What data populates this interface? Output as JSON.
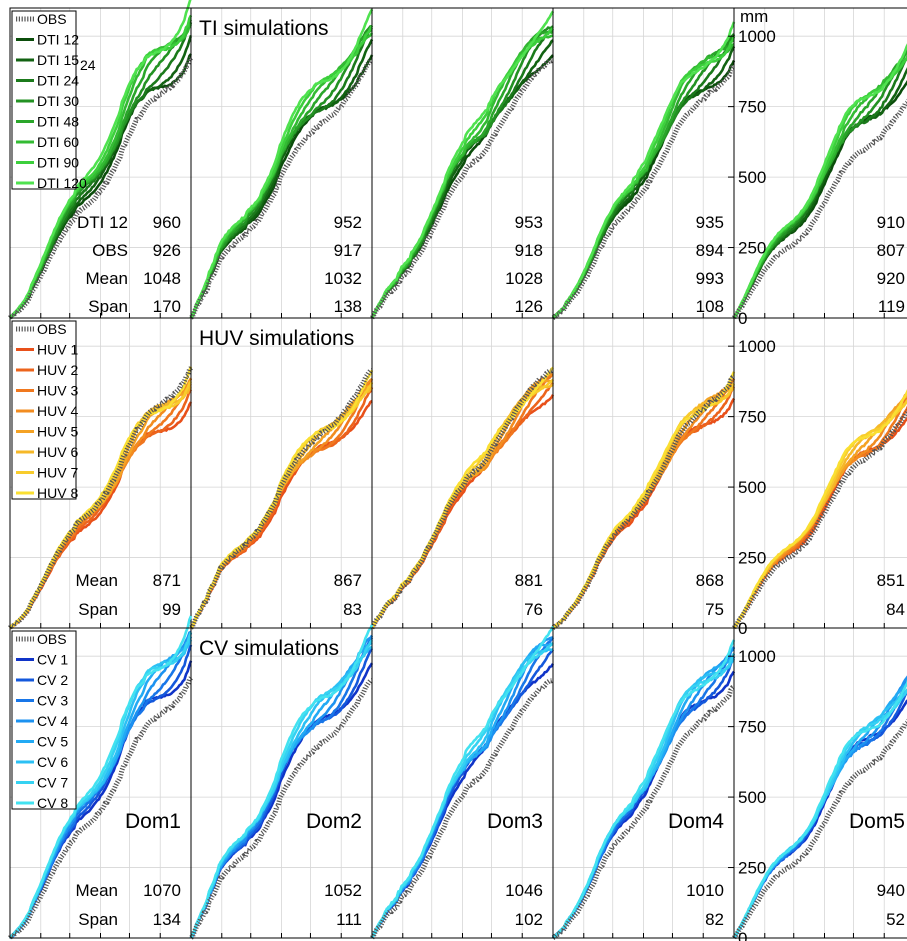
{
  "yaxis": {
    "unit_label": "mm",
    "ticks": [
      0,
      250,
      500,
      750,
      1000
    ],
    "ylim": [
      0,
      1100
    ]
  },
  "domains": [
    "Dom1",
    "Dom2",
    "Dom3",
    "Dom4",
    "Dom5"
  ],
  "colors": {
    "obs": "#555555",
    "ti": [
      "#0b4d0b",
      "#126212",
      "#1b7a1b",
      "#239223",
      "#2aa62a",
      "#33bb33",
      "#3ccf3c",
      "#4fe24f"
    ],
    "huv": [
      "#e8501a",
      "#ec641c",
      "#f0781e",
      "#f28c20",
      "#f4a224",
      "#f6b828",
      "#f8cc2c",
      "#fadf32"
    ],
    "cv": [
      "#1034c8",
      "#1458dc",
      "#1876e8",
      "#1c92f0",
      "#22aaf4",
      "#2bc0f4",
      "#35d2f2",
      "#42e2f0"
    ]
  },
  "annotation_24": "24",
  "chart_data": [
    {
      "type": "line",
      "title": "TI simulations",
      "xlabel": "",
      "ylabel": "mm",
      "legend": [
        "OBS",
        "DTI 12",
        "DTI 15",
        "DTI 24",
        "DTI 30",
        "DTI 48",
        "DTI 60",
        "DTI 90",
        "DTI 120"
      ],
      "stat_labels": [
        "DTI 12",
        "OBS",
        "Mean",
        "Span"
      ],
      "stats": [
        [
          "960",
          "926",
          "1048",
          "170"
        ],
        [
          "952",
          "917",
          "1032",
          "138"
        ],
        [
          "953",
          "918",
          "1028",
          "126"
        ],
        [
          "935",
          "894",
          "993",
          "108"
        ],
        [
          "910",
          "807",
          "920",
          "119"
        ]
      ],
      "final_values": {
        "obs": [
          926,
          917,
          918,
          894,
          807
        ],
        "sim_range": [
          [
            960,
            1130
          ],
          [
            952,
            1090
          ],
          [
            953,
            1079
          ],
          [
            935,
            1043
          ],
          [
            910,
            1029
          ]
        ]
      }
    },
    {
      "type": "line",
      "title": "HUV simulations",
      "xlabel": "",
      "ylabel": "mm",
      "legend": [
        "OBS",
        "HUV 1",
        "HUV 2",
        "HUV 3",
        "HUV 4",
        "HUV 5",
        "HUV 6",
        "HUV 7",
        "HUV 8"
      ],
      "stat_labels": [
        "Mean",
        "Span"
      ],
      "stats": [
        [
          "871",
          "99"
        ],
        [
          "867",
          "83"
        ],
        [
          "881",
          "76"
        ],
        [
          "868",
          "75"
        ],
        [
          "851",
          "84"
        ]
      ],
      "final_values": {
        "obs": [
          926,
          917,
          918,
          894,
          807
        ],
        "sim_range": [
          [
            820,
            919
          ],
          [
            825,
            908
          ],
          [
            843,
            919
          ],
          [
            831,
            906
          ],
          [
            809,
            893
          ]
        ]
      }
    },
    {
      "type": "line",
      "title": "CV simulations",
      "xlabel": "",
      "ylabel": "mm",
      "legend": [
        "OBS",
        "CV 1",
        "CV 2",
        "CV 3",
        "CV 4",
        "CV 5",
        "CV 6",
        "CV 7",
        "CV 8"
      ],
      "stat_labels": [
        "Mean",
        "Span"
      ],
      "stats": [
        [
          "1070",
          "134"
        ],
        [
          "1052",
          "111"
        ],
        [
          "1046",
          "102"
        ],
        [
          "1010",
          "82"
        ],
        [
          "940",
          "52"
        ]
      ],
      "final_values": {
        "obs": [
          926,
          917,
          918,
          894,
          807
        ],
        "sim_range": [
          [
            1003,
            1137
          ],
          [
            996,
            1107
          ],
          [
            995,
            1097
          ],
          [
            969,
            1051
          ],
          [
            914,
            966
          ]
        ]
      }
    }
  ]
}
